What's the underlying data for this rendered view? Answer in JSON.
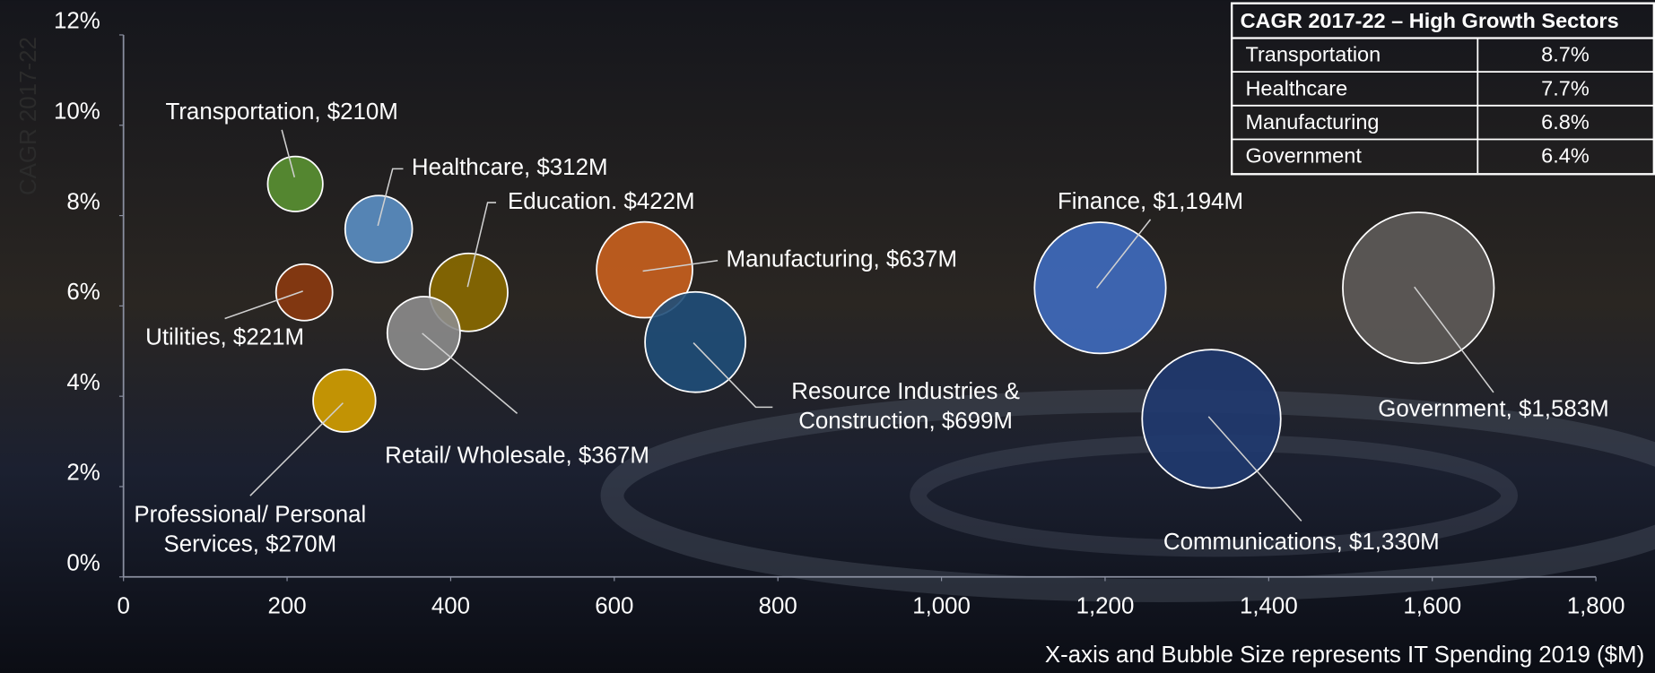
{
  "chart_data": {
    "type": "bubble",
    "y_label": "CAGR 2017-22",
    "x_label": "X-axis and Bubble Size represents IT Spending 2019 ($M)",
    "xlim": [
      0,
      1800
    ],
    "ylim": [
      0,
      12
    ],
    "xticks": [
      0,
      200,
      400,
      600,
      800,
      {
        "value": 1000,
        "label": "1,000"
      },
      {
        "value": 1200,
        "label": "1,200"
      },
      {
        "value": 1400,
        "label": "1,400"
      },
      {
        "value": 1600,
        "label": "1,600"
      },
      {
        "value": 1800,
        "label": "1,800"
      }
    ],
    "yticks": [
      {
        "value": 0,
        "label": "0%"
      },
      {
        "value": 2,
        "label": "2%"
      },
      {
        "value": 4,
        "label": "4%"
      },
      {
        "value": 6,
        "label": "6%"
      },
      {
        "value": 8,
        "label": "8%"
      },
      {
        "value": 10,
        "label": "10%"
      },
      {
        "value": 12,
        "label": "12%"
      }
    ],
    "x": [
      210,
      312,
      422,
      221,
      367,
      637,
      699,
      270,
      1194,
      1583,
      1330
    ],
    "y": [
      8.7,
      7.7,
      6.3,
      6.3,
      5.4,
      6.8,
      5.2,
      3.9,
      6.4,
      6.4,
      3.5
    ],
    "sizes": [
      210,
      312,
      422,
      221,
      367,
      637,
      699,
      270,
      1194,
      1583,
      1330
    ],
    "value_labels": [
      "Transportation, $210M",
      "Healthcare, $312M",
      "Education. $422M",
      "Utilities, $221M",
      "Retail/ Wholesale, $367M",
      "Manufacturing, $637M",
      "Resource Industries &\nConstruction, $699M",
      "Professional/ Personal\nServices, $270M",
      "Finance, $1,194M",
      "Government, $1,583M",
      "Communications, $1,330M"
    ],
    "colors": [
      "#5a9132",
      "#5b8fc4",
      "#8a6a00",
      "#8b3a0f",
      "#8c8c8c",
      "#c9611e",
      "#1f4e79",
      "#d4a000",
      "#3f6bbf",
      "#5e5b59",
      "#203a70"
    ]
  },
  "table": {
    "title": "CAGR 2017-22 – High Growth Sectors",
    "rows": [
      [
        "Transportation",
        "8.7%"
      ],
      [
        "Healthcare",
        "7.7%"
      ],
      [
        "Manufacturing",
        "6.8%"
      ],
      [
        "Government",
        "6.4%"
      ]
    ]
  }
}
